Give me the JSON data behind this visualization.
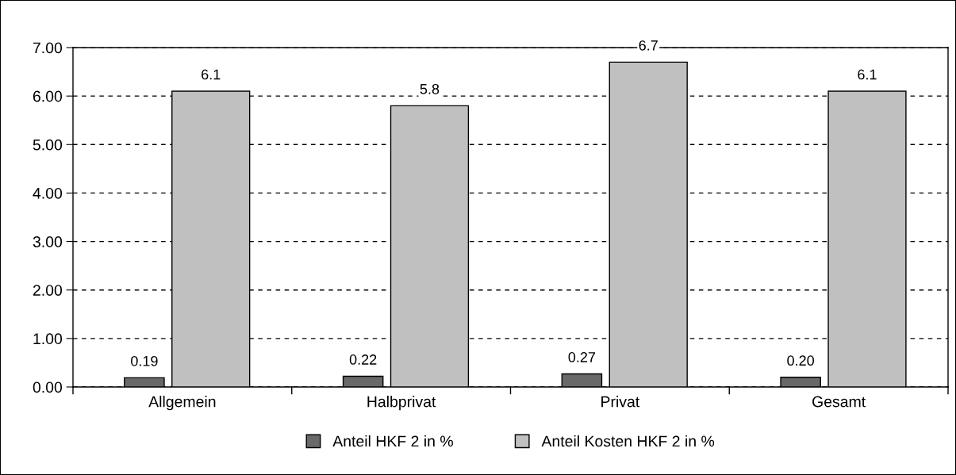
{
  "chart_data": {
    "type": "bar",
    "categories": [
      "Allgemein",
      "Halbprivat",
      "Privat",
      "Gesamt"
    ],
    "series": [
      {
        "name": "Anteil HKF 2 in %",
        "color": "#696969",
        "values": [
          0.19,
          0.22,
          0.27,
          0.2
        ],
        "value_labels": [
          "0.19",
          "0.22",
          "0.27",
          "0.20"
        ]
      },
      {
        "name": "Anteil Kosten HKF 2 in %",
        "color": "#c0c0c0",
        "values": [
          6.1,
          5.8,
          6.7,
          6.1
        ],
        "value_labels": [
          "6.1",
          "5.8",
          "6.7",
          "6.1"
        ]
      }
    ],
    "ylim": [
      0,
      7
    ],
    "yticks": [
      {
        "value": 0,
        "label": "0.00"
      },
      {
        "value": 1,
        "label": "1.00"
      },
      {
        "value": 2,
        "label": "2.00"
      },
      {
        "value": 3,
        "label": "3.00"
      },
      {
        "value": 4,
        "label": "4.00"
      },
      {
        "value": 5,
        "label": "5.00"
      },
      {
        "value": 6,
        "label": "6.00"
      },
      {
        "value": 7,
        "label": "7.00"
      }
    ],
    "grid": "y",
    "legend": "bottom"
  }
}
